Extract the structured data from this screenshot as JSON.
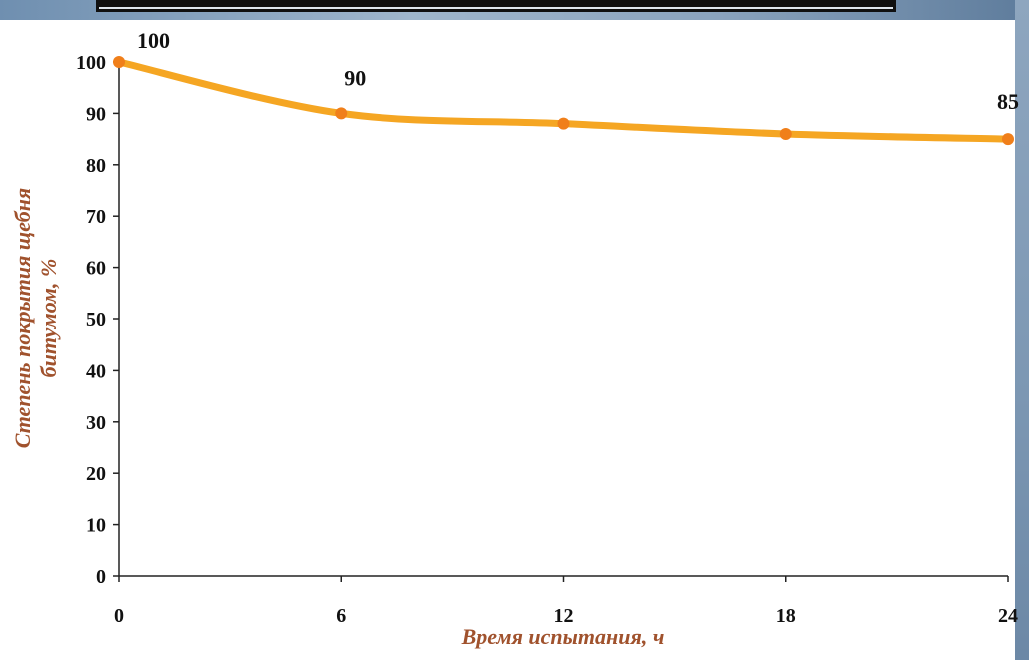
{
  "chart_data": {
    "type": "line",
    "title": "",
    "xlabel": "Время испытания, ч",
    "ylabel_lines": [
      "Степень покрытия щебня",
      "битумом, %"
    ],
    "x": [
      0,
      6,
      12,
      18,
      24
    ],
    "x_ticks": [
      "0",
      "6",
      "12",
      "18",
      "24"
    ],
    "y_ticks": [
      "0",
      "10",
      "20",
      "30",
      "40",
      "50",
      "60",
      "70",
      "80",
      "90",
      "100"
    ],
    "xlim": [
      0,
      24
    ],
    "ylim": [
      0,
      100
    ],
    "grid": false,
    "series": [
      {
        "values": [
          100,
          90,
          88,
          86,
          85
        ]
      }
    ],
    "data_labels": [
      {
        "x": 0,
        "text": "100"
      },
      {
        "x": 6,
        "text": "90"
      },
      {
        "x": 24,
        "text": "85"
      }
    ],
    "colors": {
      "line": "#f5a623",
      "marker": "#f07f1a",
      "axis_title": "#a0522d",
      "text": "#111111"
    }
  }
}
